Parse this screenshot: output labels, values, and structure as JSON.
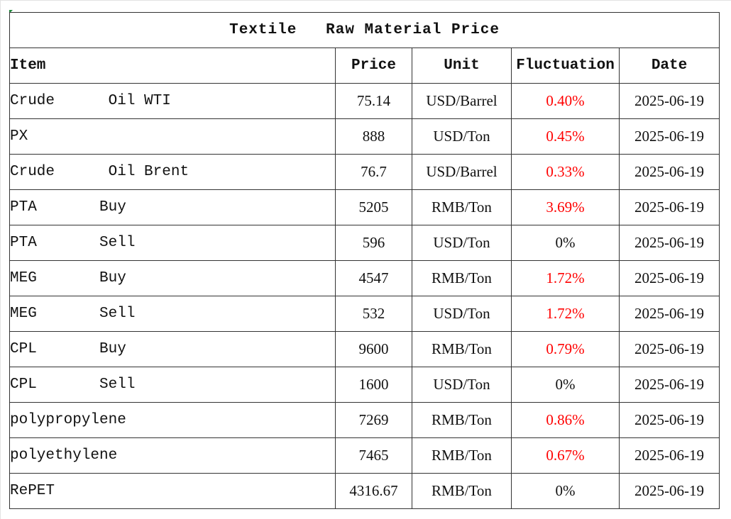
{
  "sheet": {
    "title": "Textile   Raw Material Price",
    "headers": {
      "item": "Item",
      "price": "Price",
      "unit": "Unit",
      "fluctuation": "Fluctuation",
      "date": "Date"
    },
    "colors": {
      "up": "#ff0000",
      "flat": "#111111"
    },
    "rows": [
      {
        "item": "Crude      Oil WTI",
        "price": "75.14",
        "unit": "USD/Barrel",
        "fluctuation": "0.40%",
        "trend": "up",
        "date": "2025-06-19"
      },
      {
        "item": "PX",
        "price": "888",
        "unit": "USD/Ton",
        "fluctuation": "0.45%",
        "trend": "up",
        "date": "2025-06-19"
      },
      {
        "item": "Crude      Oil Brent",
        "price": "76.7",
        "unit": "USD/Barrel",
        "fluctuation": "0.33%",
        "trend": "up",
        "date": "2025-06-19"
      },
      {
        "item": "PTA       Buy",
        "price": "5205",
        "unit": "RMB/Ton",
        "fluctuation": "3.69%",
        "trend": "up",
        "date": "2025-06-19"
      },
      {
        "item": "PTA       Sell",
        "price": "596",
        "unit": "USD/Ton",
        "fluctuation": "0%",
        "trend": "flat",
        "date": "2025-06-19"
      },
      {
        "item": "MEG       Buy",
        "price": "4547",
        "unit": "RMB/Ton",
        "fluctuation": "1.72%",
        "trend": "up",
        "date": "2025-06-19"
      },
      {
        "item": "MEG       Sell",
        "price": "532",
        "unit": "USD/Ton",
        "fluctuation": "1.72%",
        "trend": "up",
        "date": "2025-06-19"
      },
      {
        "item": "CPL       Buy",
        "price": "9600",
        "unit": "RMB/Ton",
        "fluctuation": "0.79%",
        "trend": "up",
        "date": "2025-06-19"
      },
      {
        "item": "CPL       Sell",
        "price": "1600",
        "unit": "USD/Ton",
        "fluctuation": "0%",
        "trend": "flat",
        "date": "2025-06-19"
      },
      {
        "item": "polypropylene",
        "price": "7269",
        "unit": "RMB/Ton",
        "fluctuation": "0.86%",
        "trend": "up",
        "date": "2025-06-19"
      },
      {
        "item": "polyethylene",
        "price": "7465",
        "unit": "RMB/Ton",
        "fluctuation": "0.67%",
        "trend": "up",
        "date": "2025-06-19"
      },
      {
        "item": "RePET",
        "price": "4316.67",
        "unit": "RMB/Ton",
        "fluctuation": "0%",
        "trend": "flat",
        "date": "2025-06-19"
      }
    ]
  }
}
